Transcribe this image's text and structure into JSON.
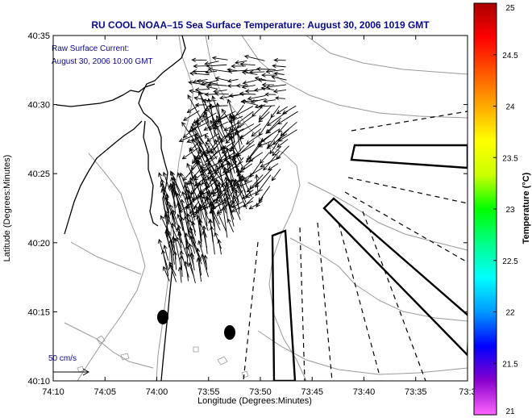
{
  "title": "RU COOL  NOAA–15  Sea Surface Temperature:  August 30, 2006 1019 GMT",
  "annotation": {
    "line1": "Raw Surface Current:",
    "line2": "August 30, 2006 10:00 GMT"
  },
  "scale_label": "50 cm/s",
  "x_axis": {
    "label": "Longitude (Degrees:Minutes)",
    "ticks": [
      "74:10",
      "74:05",
      "74:00",
      "73:55",
      "73:50",
      "73:45",
      "73:40",
      "73:35",
      "73:3"
    ]
  },
  "y_axis": {
    "label": "Latitude (Degrees:Minutes)",
    "ticks": [
      "40:35",
      "40:30",
      "40:25",
      "40:20",
      "40:15",
      "40:10"
    ]
  },
  "colorbar": {
    "label": "Temperature (°C)",
    "ticks": [
      "25",
      "24.5",
      "24",
      "23.5",
      "23",
      "22.5",
      "22",
      "21.5",
      "21"
    ],
    "colors": [
      "#ff66ff",
      "#8800cc",
      "#0000ff",
      "#0099ff",
      "#00ffff",
      "#00ff88",
      "#00ff00",
      "#ccff00",
      "#ffff00",
      "#ffaa00",
      "#ff5500",
      "#ff0000",
      "#aa0000"
    ]
  },
  "colors": {
    "title": "#0a0a8a",
    "contour": "#999999",
    "coast": "#000000"
  }
}
